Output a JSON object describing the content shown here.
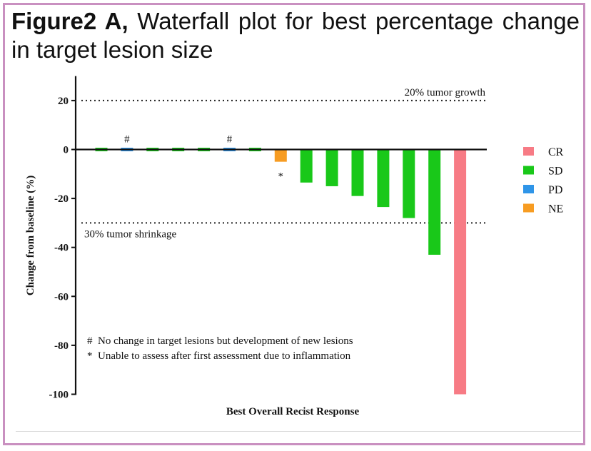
{
  "figure": {
    "label": "Figure2 A,",
    "caption": "Waterfall plot for best percentage change in target lesion size"
  },
  "chart_data": {
    "type": "bar",
    "title": "Waterfall plot for best percentage change in target lesion size",
    "xlabel": "Best Overall Recist Response",
    "ylabel": "Change from baseline (%)",
    "ylim": [
      -100,
      30
    ],
    "yticks": [
      20,
      0,
      -20,
      -40,
      -60,
      -80,
      -100
    ],
    "ytick_labels": [
      "20",
      "0",
      "-20",
      "-40",
      "-60",
      "-80",
      "-100"
    ],
    "categories": [
      "SD",
      "PD",
      "SD",
      "SD",
      "SD",
      "PD",
      "SD",
      "NE",
      "SD",
      "SD",
      "SD",
      "SD",
      "SD",
      "SD",
      "CR"
    ],
    "values": [
      0,
      0,
      0,
      0,
      0,
      0,
      0,
      -5,
      -13.5,
      -15,
      -19,
      -23.5,
      -28,
      -43,
      -100
    ],
    "bar_markers": [
      "",
      "#",
      "",
      "",
      "",
      "#",
      "",
      "*",
      "",
      "",
      "",
      "",
      "",
      "",
      ""
    ],
    "reference_lines": [
      {
        "value": 20,
        "label": "20% tumor growth"
      },
      {
        "value": -30,
        "label": "30% tumor shrinkage"
      }
    ],
    "legend": [
      {
        "name": "CR",
        "color": "#f77b85"
      },
      {
        "name": "SD",
        "color": "#19c819"
      },
      {
        "name": "PD",
        "color": "#2f95e8"
      },
      {
        "name": "NE",
        "color": "#f79c22"
      }
    ],
    "legend_position": "right",
    "notes": [
      "#  No change in target lesions but development of new lesions",
      "*  Unable to assess after first assessment due to inflammation"
    ]
  }
}
